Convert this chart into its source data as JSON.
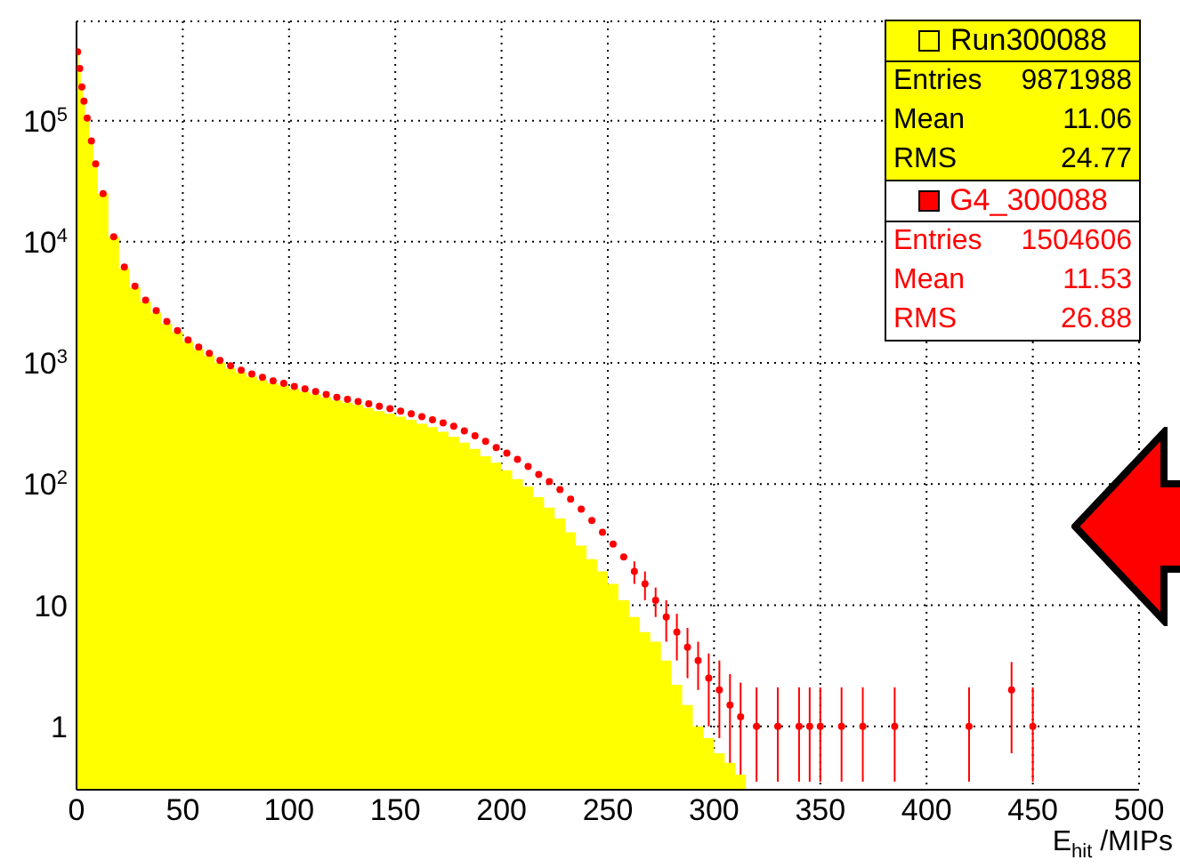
{
  "chart_data": {
    "type": "histogram",
    "xlabel": "E$_{hit}$ /MIPs",
    "xlim": [
      0,
      500
    ],
    "xticks": [
      0,
      50,
      100,
      150,
      200,
      250,
      300,
      350,
      400,
      450,
      500
    ],
    "ylim": [
      0.3,
      660000
    ],
    "yticks": [
      1,
      10,
      {
        "value": 100,
        "label": "10$^{2}$"
      },
      {
        "value": 1000,
        "label": "10$^{3}$"
      },
      {
        "value": 10000,
        "label": "10$^{4}$"
      },
      {
        "value": 100000,
        "label": "10$^{5}$"
      }
    ],
    "log": "y",
    "grid": true,
    "legend": "top right",
    "series": [
      {
        "name": "Run300088",
        "color": "#ffff00",
        "bins": [
          0,
          1,
          2,
          3,
          4,
          6,
          8,
          10,
          15,
          20,
          25,
          30,
          35,
          40,
          45,
          50,
          55,
          60,
          65,
          70,
          75,
          80,
          85,
          90,
          95,
          100,
          105,
          110,
          115,
          120,
          125,
          130,
          135,
          140,
          145,
          150,
          155,
          160,
          165,
          170,
          175,
          180,
          185,
          190,
          195,
          200,
          205,
          210,
          215,
          220,
          225,
          230,
          235,
          240,
          245,
          250,
          255,
          260,
          265,
          270,
          275,
          280,
          285,
          290,
          295,
          300,
          305,
          310,
          315
        ],
        "values": [
          390000,
          280000,
          200000,
          150000,
          110000,
          70000,
          45000,
          25000,
          11000,
          6000,
          4200,
          3200,
          2600,
          2100,
          1800,
          1500,
          1300,
          1150,
          1000,
          900,
          830,
          770,
          720,
          680,
          650,
          610,
          580,
          550,
          520,
          490,
          470,
          450,
          425,
          400,
          380,
          360,
          340,
          315,
          295,
          270,
          245,
          220,
          195,
          170,
          150,
          130,
          110,
          95,
          78,
          64,
          52,
          40,
          31,
          24,
          19,
          15,
          11,
          8,
          6,
          5,
          3.5,
          2.2,
          1.5,
          1,
          0.8,
          0.6,
          0.5,
          0.4
        ]
      },
      {
        "type": "scatter",
        "name": "G4_300088",
        "color": "#ff0000",
        "marker": "circle",
        "x": [
          0.5,
          1.5,
          2.5,
          3.5,
          5,
          7,
          9,
          12.5,
          17.5,
          22.5,
          27.5,
          32.5,
          37.5,
          42.5,
          47.5,
          52.5,
          57.5,
          62.5,
          67.5,
          72.5,
          77.5,
          82.5,
          87.5,
          92.5,
          97.5,
          102.5,
          107.5,
          112.5,
          117.5,
          122.5,
          127.5,
          132.5,
          137.5,
          142.5,
          147.5,
          152.5,
          157.5,
          162.5,
          167.5,
          172.5,
          177.5,
          182.5,
          187.5,
          192.5,
          197.5,
          202.5,
          207.5,
          212.5,
          217.5,
          222.5,
          227.5,
          232.5,
          237.5,
          242.5,
          247.5,
          252.5,
          257.5,
          262.5,
          267.5,
          272.5,
          277.5,
          282.5,
          287.5,
          292.5,
          297.5,
          302.5,
          307.5,
          312.5,
          320,
          330,
          340,
          345,
          350,
          360,
          370,
          385,
          420,
          440,
          450
        ],
        "values": [
          370000,
          270000,
          190000,
          145000,
          105000,
          68000,
          44000,
          25000,
          11000,
          6200,
          4300,
          3300,
          2700,
          2200,
          1850,
          1550,
          1350,
          1200,
          1050,
          950,
          870,
          810,
          760,
          710,
          680,
          640,
          610,
          580,
          550,
          520,
          500,
          480,
          460,
          440,
          420,
          400,
          380,
          360,
          340,
          320,
          300,
          275,
          250,
          225,
          200,
          180,
          160,
          140,
          120,
          105,
          90,
          75,
          62,
          50,
          40,
          32,
          25,
          19,
          15,
          11,
          8,
          6,
          4.5,
          3.5,
          2.5,
          2,
          1.5,
          1.2,
          1,
          1,
          1,
          1,
          1,
          1,
          1,
          1,
          1,
          2,
          1
        ],
        "errors": [
          null,
          null,
          null,
          null,
          null,
          null,
          null,
          null,
          null,
          null,
          null,
          null,
          null,
          null,
          null,
          null,
          null,
          null,
          null,
          null,
          null,
          null,
          null,
          null,
          null,
          null,
          null,
          null,
          null,
          null,
          null,
          null,
          null,
          null,
          null,
          null,
          null,
          null,
          null,
          null,
          null,
          null,
          null,
          null,
          null,
          null,
          null,
          null,
          null,
          null,
          null,
          null,
          null,
          null,
          null,
          null,
          null,
          4,
          4,
          3,
          3,
          2.5,
          2,
          1.5,
          1.5,
          [
            0.8,
            3.5
          ],
          [
            0.5,
            2.7
          ],
          [
            0.4,
            2.3
          ],
          [
            0.35,
            2.1
          ],
          [
            0.35,
            2.1
          ],
          [
            0.35,
            2.1
          ],
          [
            0.35,
            2.1
          ],
          [
            0.35,
            2.1
          ],
          [
            0.35,
            2.1
          ],
          [
            0.35,
            2.1
          ],
          [
            0.35,
            2.1
          ],
          [
            0.35,
            2.1
          ],
          [
            0.6,
            3.4
          ],
          [
            0.35,
            2.1
          ]
        ]
      }
    ],
    "annotations": [
      "Entries 9871988",
      "Mean 11.06",
      "RMS 24.77",
      "Entries 1504606",
      "Mean 11.53",
      "RMS 26.88"
    ]
  }
}
